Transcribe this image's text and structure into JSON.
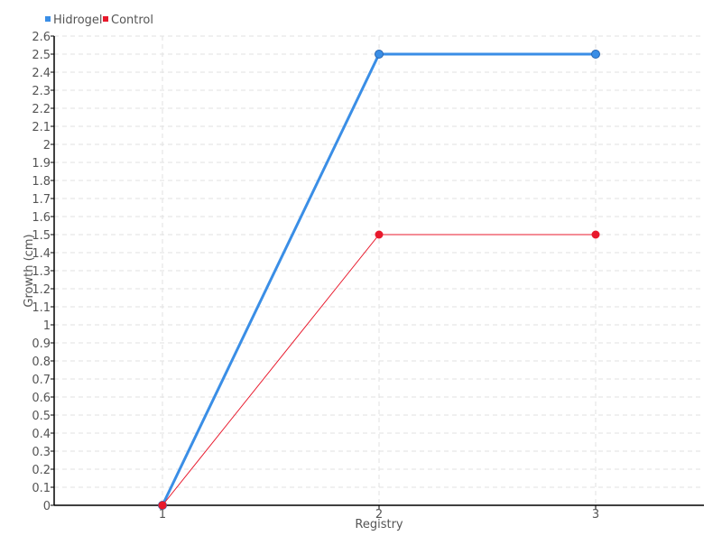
{
  "chart_data": {
    "type": "line",
    "title": "",
    "xlabel": "Registry",
    "ylabel": "Growth (cm)",
    "categories": [
      "1",
      "2",
      "3"
    ],
    "x": [
      1,
      2,
      3
    ],
    "xlim": [
      0.5,
      3.5
    ],
    "ylim": [
      0,
      2.6
    ],
    "yticks": [
      0,
      0.1,
      0.2,
      0.3,
      0.4,
      0.5,
      0.6,
      0.7,
      0.8,
      0.9,
      1,
      1.1,
      1.2,
      1.3,
      1.4,
      1.5,
      1.6,
      1.7,
      1.8,
      1.9,
      2,
      2.1,
      2.2,
      2.3,
      2.4,
      2.5,
      2.6
    ],
    "ytick_labels": [
      "0",
      "0.1",
      "0.2",
      "0.3",
      "0.4",
      "0.5",
      "0.6",
      "0.7",
      "0.8",
      "0.9",
      "1",
      "1.1",
      "1.2",
      "1.3",
      "1.4",
      "1.5",
      "1.6",
      "1.7",
      "1.8",
      "1.9",
      "2",
      "2.1",
      "2.2",
      "2.3",
      "2.4",
      "2.5",
      "2.6"
    ],
    "grid": true,
    "legend_position": "top-left",
    "series": [
      {
        "name": "Hidrogel",
        "values": [
          0,
          2.5,
          2.5
        ],
        "color": "#3a8ee6"
      },
      {
        "name": "Control",
        "values": [
          0,
          1.5,
          1.5
        ],
        "color": "#e8192c"
      }
    ]
  }
}
